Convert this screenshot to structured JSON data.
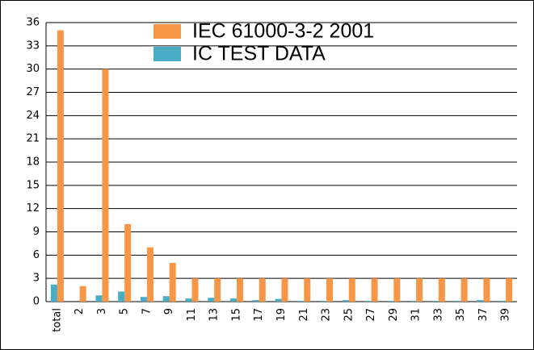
{
  "chart_data": {
    "type": "bar",
    "categories": [
      "total",
      "2",
      "3",
      "5",
      "7",
      "9",
      "11",
      "13",
      "15",
      "17",
      "19",
      "21",
      "23",
      "25",
      "27",
      "29",
      "31",
      "33",
      "35",
      "37",
      "39"
    ],
    "series": [
      {
        "name": "IEC 61000-3-2 2001",
        "color": "#f79646",
        "values": [
          35,
          2,
          30,
          10,
          7,
          5,
          3,
          3,
          3,
          3,
          3,
          3,
          3,
          3,
          3,
          3,
          3,
          3,
          3,
          3,
          3
        ]
      },
      {
        "name": "IC TEST DATA",
        "color": "#4bacc6",
        "values": [
          2.2,
          0,
          0.8,
          1.3,
          0.6,
          0.7,
          0.4,
          0.5,
          0.4,
          0.2,
          0.35,
          0.1,
          0.1,
          0.2,
          0.1,
          0.1,
          0.1,
          0.1,
          0.1,
          0.2,
          0.1
        ]
      }
    ],
    "ylim": [
      0,
      36
    ],
    "yticks": [
      0,
      3,
      6,
      9,
      12,
      15,
      18,
      21,
      24,
      27,
      30,
      33,
      36
    ],
    "grid": true,
    "legend": "top"
  }
}
